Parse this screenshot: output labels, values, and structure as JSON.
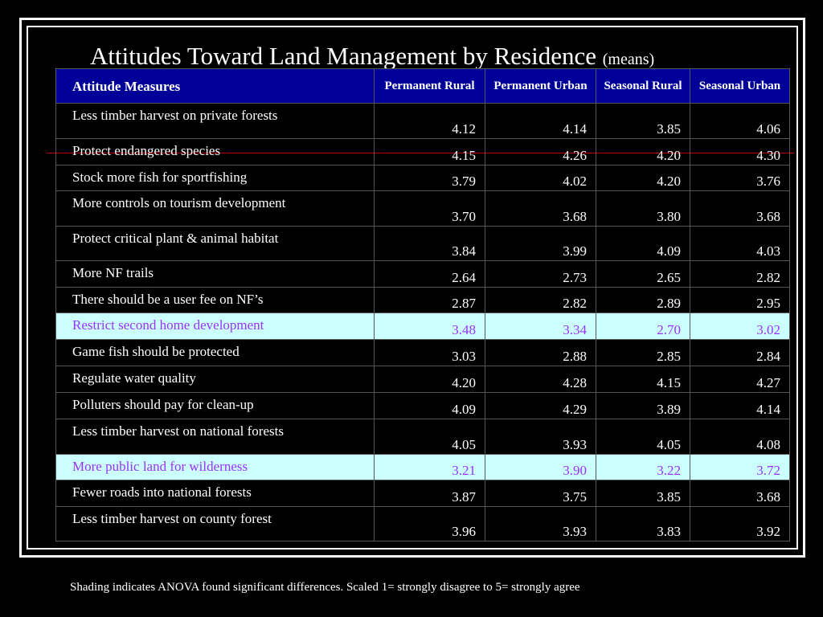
{
  "title": "Attitudes Toward Land Management by Residence",
  "title_suffix": "(means)",
  "header": {
    "col0": "Attitude Measures",
    "col1": "Permanent Rural",
    "col2": "Permanent Urban",
    "col3": "Seasonal Rural",
    "col4": "Seasonal Urban"
  },
  "rows": [
    {
      "label": "Less timber harvest on private forests",
      "v": [
        "4.12",
        "4.14",
        "3.85",
        "4.06"
      ],
      "shaded": false
    },
    {
      "label": "Protect endangered species",
      "v": [
        "4.15",
        "4.26",
        "4.20",
        "4.30"
      ],
      "shaded": false
    },
    {
      "label": "Stock more fish for sportfishing",
      "v": [
        "3.79",
        "4.02",
        "4.20",
        "3.76"
      ],
      "shaded": false
    },
    {
      "label": "More controls on tourism development",
      "v": [
        "3.70",
        "3.68",
        "3.80",
        "3.68"
      ],
      "shaded": false
    },
    {
      "label": "Protect critical plant & animal habitat",
      "v": [
        "3.84",
        "3.99",
        "4.09",
        "4.03"
      ],
      "shaded": false
    },
    {
      "label": "More NF trails",
      "v": [
        "2.64",
        "2.73",
        "2.65",
        "2.82"
      ],
      "shaded": false
    },
    {
      "label": "There should be a user fee on NF’s",
      "v": [
        "2.87",
        "2.82",
        "2.89",
        "2.95"
      ],
      "shaded": false
    },
    {
      "label": "Restrict second home development",
      "v": [
        "3.48",
        "3.34",
        "2.70",
        "3.02"
      ],
      "shaded": true
    },
    {
      "label": "Game fish should be protected",
      "v": [
        "3.03",
        "2.88",
        "2.85",
        "2.84"
      ],
      "shaded": false
    },
    {
      "label": "Regulate water quality",
      "v": [
        "4.20",
        "4.28",
        "4.15",
        "4.27"
      ],
      "shaded": false
    },
    {
      "label": "Polluters should pay for clean-up",
      "v": [
        "4.09",
        "4.29",
        "3.89",
        "4.14"
      ],
      "shaded": false
    },
    {
      "label": "Less timber harvest on national forests",
      "v": [
        "4.05",
        "3.93",
        "4.05",
        "4.08"
      ],
      "shaded": false
    },
    {
      "label": "More public land for wilderness",
      "v": [
        "3.21",
        "3.90",
        "3.22",
        "3.72"
      ],
      "shaded": true
    },
    {
      "label": "Fewer roads into national forests",
      "v": [
        "3.87",
        "3.75",
        "3.85",
        "3.68"
      ],
      "shaded": false
    },
    {
      "label": "Less timber harvest on county forest",
      "v": [
        "3.96",
        "3.93",
        "3.83",
        "3.92"
      ],
      "shaded": false
    }
  ],
  "footnote": "Shading indicates ANOVA found significant differences. Scaled 1= strongly disagree to 5= strongly agree",
  "colors": {
    "background": "#000000",
    "header_fill": "#000099",
    "shade_fill": "#ccffff",
    "shade_text": "#9933ff"
  }
}
